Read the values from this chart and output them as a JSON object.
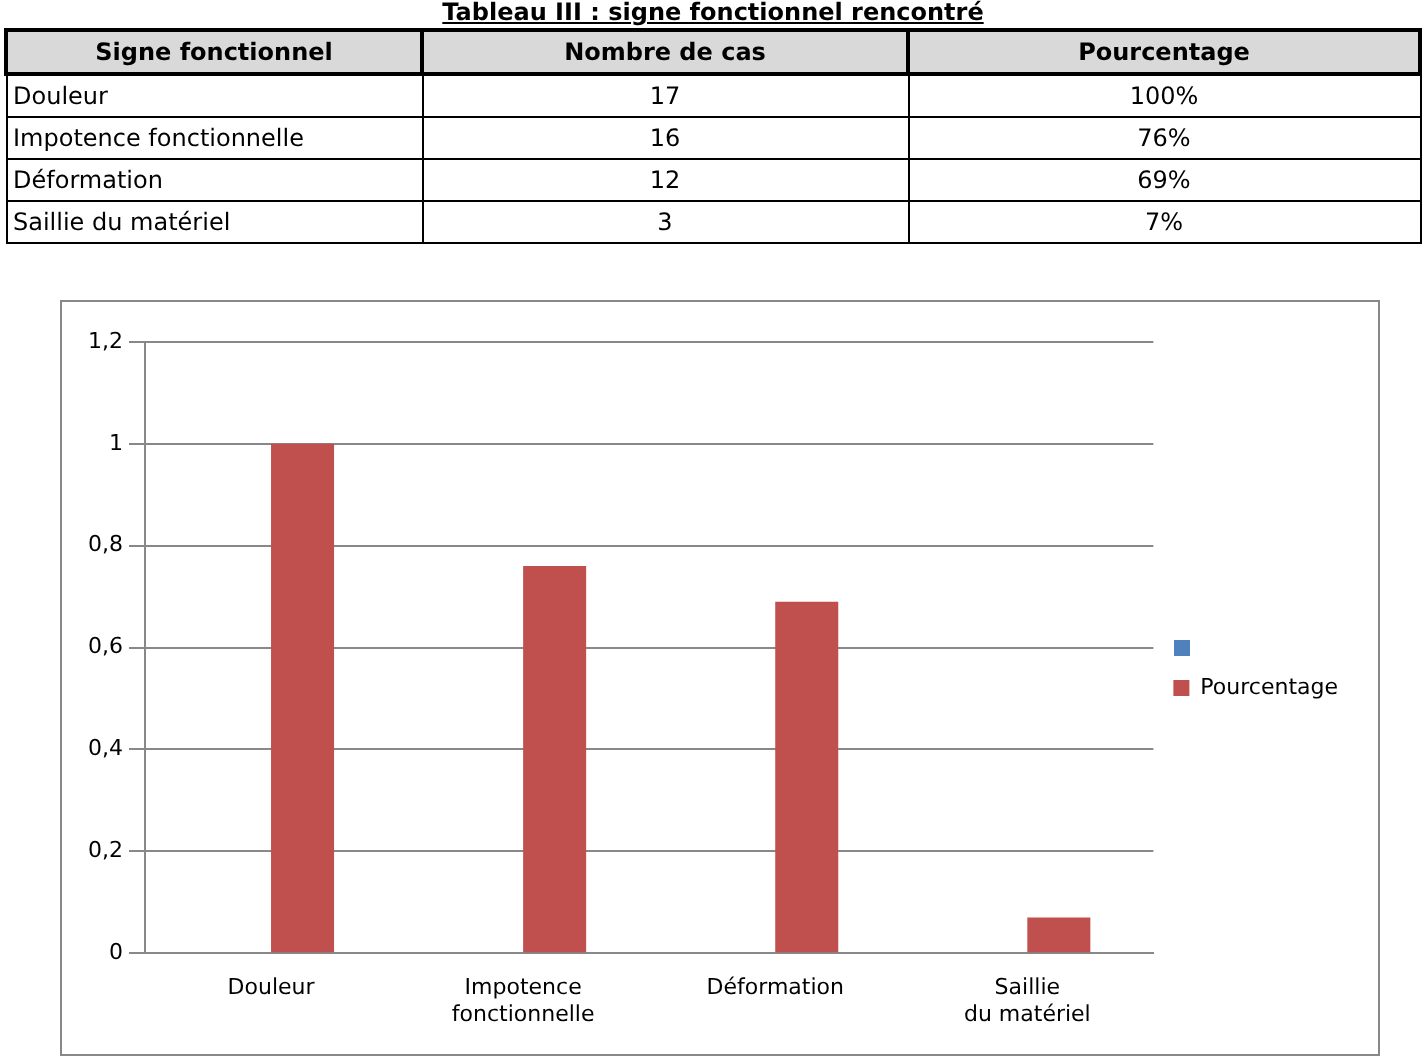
{
  "chart_data": [
    {
      "type": "other",
      "title": "Tableau III : signe fonctionnel rencontré",
      "annotations": [
        "Signe fonctionnel",
        "Nombre de cas",
        "Pourcentage",
        "Douleur",
        "17",
        "100%",
        "Impotence fonctionnelle",
        "16",
        "76%",
        "Déformation",
        "12",
        "69%",
        "Saillie du matériel",
        "3",
        "7%"
      ]
    },
    {
      "type": "bar",
      "categories": [
        "Douleur",
        "Impotence fonctionnelle",
        "Déformation",
        "Saillie du matériel"
      ],
      "series": [
        {
          "color": "#4f81bd",
          "values": [
            null,
            null,
            null,
            null
          ]
        },
        {
          "name": "Pourcentage",
          "color": "#c0504d",
          "values": [
            1,
            0.76,
            0.69,
            0.07
          ]
        }
      ],
      "ylim": [
        0,
        1.2
      ],
      "yticks": [
        0,
        {
          "value": 0.2,
          "label": "0,2"
        },
        {
          "value": 0.4,
          "label": "0,4"
        },
        {
          "value": 0.6,
          "label": "0,6"
        },
        {
          "value": 0.8,
          "label": "0,8"
        },
        1,
        {
          "value": 1.2,
          "label": "1,2"
        }
      ],
      "grid": "y",
      "legend": "right"
    }
  ]
}
